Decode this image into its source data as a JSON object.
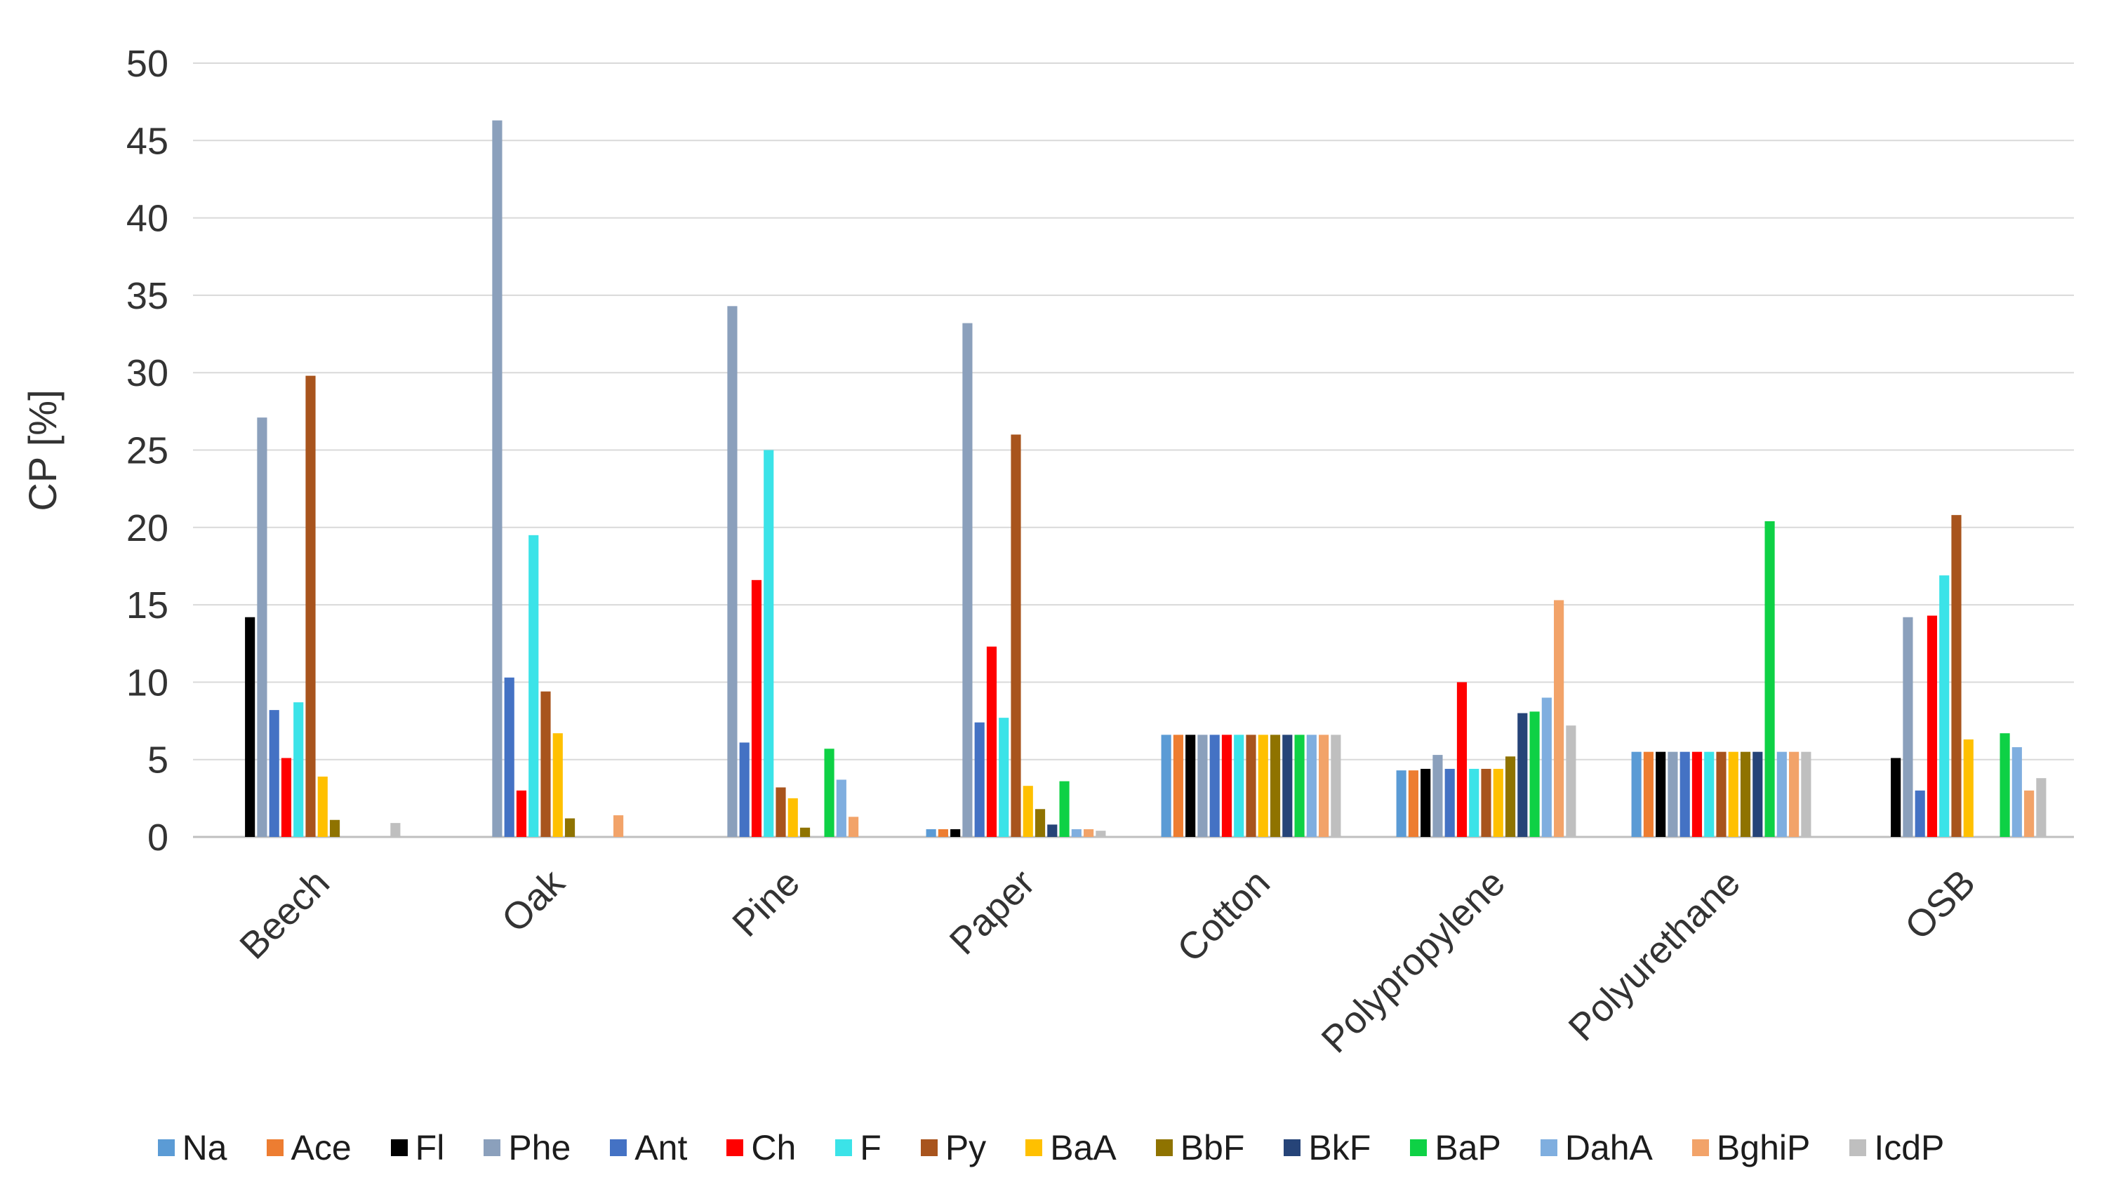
{
  "chart_data": {
    "type": "bar",
    "title": "",
    "ylabel": "CP [%]",
    "xlabel": "",
    "ylim": [
      0,
      50
    ],
    "yticks": [
      0,
      5,
      10,
      15,
      20,
      25,
      30,
      35,
      40,
      45,
      50
    ],
    "grid": true,
    "legend_position": "bottom",
    "categories": [
      "Beech",
      "Oak",
      "Pine",
      "Paper",
      "Cotton",
      "Polypropylene",
      "Polyurethane",
      "OSB"
    ],
    "series": [
      {
        "name": "Na",
        "color": "#5B9BD5",
        "values": [
          0,
          0,
          0,
          0.5,
          6.6,
          4.3,
          5.5,
          0
        ]
      },
      {
        "name": "Ace",
        "color": "#ED7D31",
        "values": [
          0,
          0,
          0,
          0.5,
          6.6,
          4.3,
          5.5,
          0
        ]
      },
      {
        "name": "Fl",
        "color": "#000000",
        "values": [
          14.2,
          0,
          0,
          0.5,
          6.6,
          4.4,
          5.5,
          5.1
        ]
      },
      {
        "name": "Phe",
        "color": "#8BA0BC",
        "values": [
          27.1,
          46.3,
          34.3,
          33.2,
          6.6,
          5.3,
          5.5,
          14.2
        ]
      },
      {
        "name": "Ant",
        "color": "#4472C4",
        "values": [
          8.2,
          10.3,
          6.1,
          7.4,
          6.6,
          4.4,
          5.5,
          3.0
        ]
      },
      {
        "name": "Ch",
        "color": "#FF0000",
        "values": [
          5.1,
          3.0,
          16.6,
          12.3,
          6.6,
          10.0,
          5.5,
          14.3
        ]
      },
      {
        "name": "F",
        "color": "#3BE3E8",
        "values": [
          8.7,
          19.5,
          25.0,
          7.7,
          6.6,
          4.4,
          5.5,
          16.9
        ]
      },
      {
        "name": "Py",
        "color": "#A8541D",
        "values": [
          29.8,
          9.4,
          3.2,
          26.0,
          6.6,
          4.4,
          5.5,
          20.8
        ]
      },
      {
        "name": "BaA",
        "color": "#FFC000",
        "values": [
          3.9,
          6.7,
          2.5,
          3.3,
          6.6,
          4.4,
          5.5,
          6.3
        ]
      },
      {
        "name": "BbF",
        "color": "#8F7300",
        "values": [
          1.1,
          1.2,
          0.6,
          1.8,
          6.6,
          5.2,
          5.5,
          0
        ]
      },
      {
        "name": "BkF",
        "color": "#264478",
        "values": [
          0,
          0,
          0,
          0.8,
          6.6,
          8.0,
          5.5,
          0
        ]
      },
      {
        "name": "BaP",
        "color": "#0ED145",
        "values": [
          0,
          0,
          5.7,
          3.6,
          6.6,
          8.1,
          20.4,
          6.7
        ]
      },
      {
        "name": "DahA",
        "color": "#7FAEDF",
        "values": [
          0,
          0,
          3.7,
          0.5,
          6.6,
          9.0,
          5.5,
          5.8
        ]
      },
      {
        "name": "BghiP",
        "color": "#F2A369",
        "values": [
          0,
          1.4,
          1.3,
          0.5,
          6.6,
          15.3,
          5.5,
          3.0
        ]
      },
      {
        "name": "IcdP",
        "color": "#BFBFBF",
        "values": [
          0.9,
          0,
          0,
          0.4,
          6.6,
          7.2,
          5.5,
          3.8
        ]
      }
    ]
  },
  "style": {
    "gridline_color": "#D9D9D9",
    "axis_line_color": "#BFBFBF",
    "text_color": "#333333"
  }
}
